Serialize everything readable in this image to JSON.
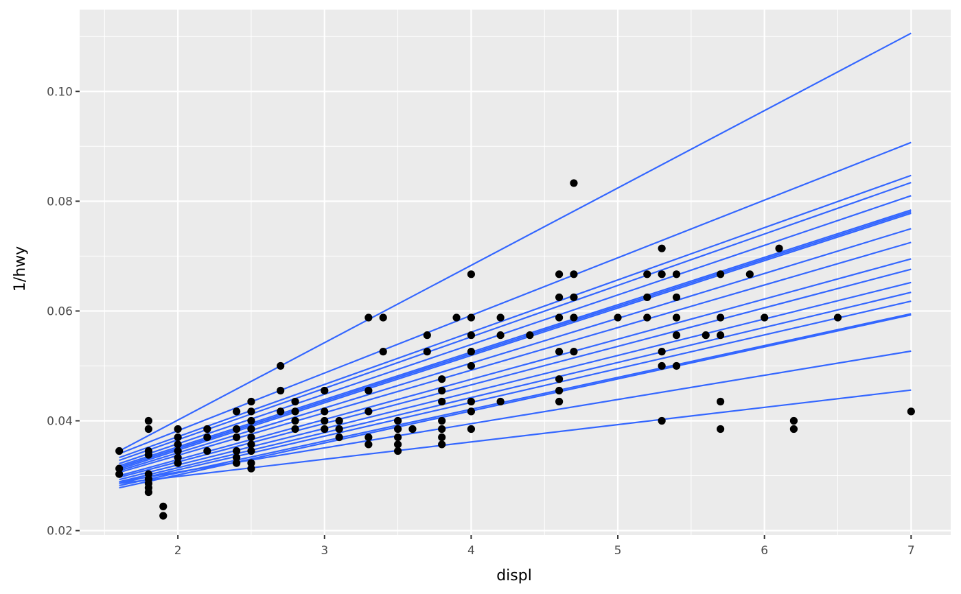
{
  "chart_data": {
    "type": "scatter",
    "xlabel": "displ",
    "ylabel": "1/hwy",
    "xlim": [
      1.33,
      7.27
    ],
    "ylim": [
      0.0192,
      0.1149
    ],
    "x_ticks": [
      2,
      3,
      4,
      5,
      6,
      7
    ],
    "x_tick_labels": [
      "2",
      "3",
      "4",
      "5",
      "6",
      "7"
    ],
    "y_ticks": [
      0.02,
      0.04,
      0.06,
      0.08,
      0.1
    ],
    "y_tick_labels": [
      "0.02",
      "0.04",
      "0.06",
      "0.08",
      "0.10"
    ],
    "grid": true,
    "colors": {
      "panel_background": "#ebebeb",
      "grid": "#ffffff",
      "points": "#000000",
      "lines": "#3366ff"
    },
    "points": [
      [
        1.6,
        0.0345
      ],
      [
        1.6,
        0.0313
      ],
      [
        1.6,
        0.0303
      ],
      [
        1.8,
        0.04
      ],
      [
        1.8,
        0.0385
      ],
      [
        1.8,
        0.0345
      ],
      [
        1.8,
        0.0338
      ],
      [
        1.8,
        0.0303
      ],
      [
        1.8,
        0.0294
      ],
      [
        1.8,
        0.0286
      ],
      [
        1.8,
        0.0278
      ],
      [
        1.8,
        0.027
      ],
      [
        1.9,
        0.0244
      ],
      [
        1.9,
        0.0227
      ],
      [
        2.0,
        0.0385
      ],
      [
        2.0,
        0.037
      ],
      [
        2.0,
        0.0357
      ],
      [
        2.0,
        0.0345
      ],
      [
        2.0,
        0.0333
      ],
      [
        2.0,
        0.0323
      ],
      [
        2.2,
        0.0385
      ],
      [
        2.2,
        0.037
      ],
      [
        2.2,
        0.0345
      ],
      [
        2.4,
        0.0417
      ],
      [
        2.4,
        0.0385
      ],
      [
        2.4,
        0.037
      ],
      [
        2.4,
        0.0345
      ],
      [
        2.4,
        0.0333
      ],
      [
        2.4,
        0.0323
      ],
      [
        2.5,
        0.0435
      ],
      [
        2.5,
        0.0417
      ],
      [
        2.5,
        0.04
      ],
      [
        2.5,
        0.0385
      ],
      [
        2.5,
        0.037
      ],
      [
        2.5,
        0.0357
      ],
      [
        2.5,
        0.0345
      ],
      [
        2.5,
        0.0323
      ],
      [
        2.5,
        0.0313
      ],
      [
        2.7,
        0.05
      ],
      [
        2.7,
        0.0455
      ],
      [
        2.7,
        0.0417
      ],
      [
        2.8,
        0.0435
      ],
      [
        2.8,
        0.0417
      ],
      [
        2.8,
        0.04
      ],
      [
        2.8,
        0.0385
      ],
      [
        3.0,
        0.0455
      ],
      [
        3.0,
        0.0417
      ],
      [
        3.0,
        0.04
      ],
      [
        3.0,
        0.0385
      ],
      [
        3.1,
        0.04
      ],
      [
        3.1,
        0.0385
      ],
      [
        3.1,
        0.037
      ],
      [
        3.3,
        0.0588
      ],
      [
        3.3,
        0.0455
      ],
      [
        3.3,
        0.0417
      ],
      [
        3.3,
        0.037
      ],
      [
        3.3,
        0.0357
      ],
      [
        3.4,
        0.0588
      ],
      [
        3.4,
        0.0526
      ],
      [
        3.5,
        0.04
      ],
      [
        3.5,
        0.0385
      ],
      [
        3.5,
        0.037
      ],
      [
        3.5,
        0.0357
      ],
      [
        3.5,
        0.0345
      ],
      [
        3.6,
        0.0385
      ],
      [
        3.7,
        0.0556
      ],
      [
        3.7,
        0.0526
      ],
      [
        3.8,
        0.0476
      ],
      [
        3.8,
        0.0455
      ],
      [
        3.8,
        0.0435
      ],
      [
        3.8,
        0.04
      ],
      [
        3.8,
        0.0385
      ],
      [
        3.8,
        0.037
      ],
      [
        3.8,
        0.0357
      ],
      [
        3.9,
        0.0588
      ],
      [
        4.0,
        0.0667
      ],
      [
        4.0,
        0.0588
      ],
      [
        4.0,
        0.0556
      ],
      [
        4.0,
        0.0526
      ],
      [
        4.0,
        0.05
      ],
      [
        4.0,
        0.0435
      ],
      [
        4.0,
        0.0417
      ],
      [
        4.0,
        0.0385
      ],
      [
        4.2,
        0.0588
      ],
      [
        4.2,
        0.0556
      ],
      [
        4.2,
        0.0435
      ],
      [
        4.4,
        0.0556
      ],
      [
        4.6,
        0.0667
      ],
      [
        4.6,
        0.0625
      ],
      [
        4.6,
        0.0588
      ],
      [
        4.6,
        0.0526
      ],
      [
        4.6,
        0.0476
      ],
      [
        4.6,
        0.0455
      ],
      [
        4.6,
        0.0435
      ],
      [
        4.7,
        0.0833
      ],
      [
        4.7,
        0.0667
      ],
      [
        4.7,
        0.0625
      ],
      [
        4.7,
        0.0588
      ],
      [
        4.7,
        0.0526
      ],
      [
        5.0,
        0.0588
      ],
      [
        5.2,
        0.0667
      ],
      [
        5.2,
        0.0625
      ],
      [
        5.2,
        0.0588
      ],
      [
        5.3,
        0.0714
      ],
      [
        5.3,
        0.0667
      ],
      [
        5.3,
        0.0526
      ],
      [
        5.3,
        0.05
      ],
      [
        5.3,
        0.04
      ],
      [
        5.4,
        0.0667
      ],
      [
        5.4,
        0.0625
      ],
      [
        5.4,
        0.0588
      ],
      [
        5.4,
        0.0556
      ],
      [
        5.4,
        0.05
      ],
      [
        5.6,
        0.0556
      ],
      [
        5.7,
        0.0667
      ],
      [
        5.7,
        0.0588
      ],
      [
        5.7,
        0.0556
      ],
      [
        5.7,
        0.0435
      ],
      [
        5.7,
        0.0385
      ],
      [
        5.9,
        0.0667
      ],
      [
        6.0,
        0.0588
      ],
      [
        6.1,
        0.0714
      ],
      [
        6.2,
        0.04
      ],
      [
        6.2,
        0.0385
      ],
      [
        6.5,
        0.0588
      ],
      [
        7.0,
        0.0417
      ]
    ],
    "lines": [
      {
        "x": [
          1.6,
          7.0
        ],
        "y": [
          0.0345,
          0.1106
        ]
      },
      {
        "x": [
          1.6,
          7.0
        ],
        "y": [
          0.034,
          0.0907
        ]
      },
      {
        "x": [
          1.6,
          7.0
        ],
        "y": [
          0.0333,
          0.0847
        ]
      },
      {
        "x": [
          1.6,
          7.0
        ],
        "y": [
          0.0328,
          0.0834
        ]
      },
      {
        "x": [
          1.6,
          7.0
        ],
        "y": [
          0.0322,
          0.081
        ]
      },
      {
        "x": [
          1.6,
          7.0
        ],
        "y": [
          0.0318,
          0.0784
        ]
      },
      {
        "x": [
          1.6,
          7.0
        ],
        "y": [
          0.0315,
          0.0781
        ]
      },
      {
        "x": [
          1.6,
          7.0
        ],
        "y": [
          0.0312,
          0.0778
        ]
      },
      {
        "x": [
          1.6,
          7.0
        ],
        "y": [
          0.0309,
          0.075
        ]
      },
      {
        "x": [
          1.6,
          7.0
        ],
        "y": [
          0.0306,
          0.0725
        ]
      },
      {
        "x": [
          1.6,
          7.0
        ],
        "y": [
          0.03,
          0.0695
        ]
      },
      {
        "x": [
          1.6,
          7.0
        ],
        "y": [
          0.0297,
          0.0676
        ]
      },
      {
        "x": [
          1.6,
          7.0
        ],
        "y": [
          0.0293,
          0.0652
        ]
      },
      {
        "x": [
          1.6,
          7.0
        ],
        "y": [
          0.0289,
          0.0634
        ]
      },
      {
        "x": [
          1.6,
          7.0
        ],
        "y": [
          0.0286,
          0.0618
        ]
      },
      {
        "x": [
          1.6,
          7.0
        ],
        "y": [
          0.0282,
          0.0595
        ]
      },
      {
        "x": [
          1.6,
          7.0
        ],
        "y": [
          0.0278,
          0.0593
        ]
      },
      {
        "x": [
          1.6,
          7.0
        ],
        "y": [
          0.0289,
          0.0527
        ]
      },
      {
        "x": [
          1.6,
          7.0
        ],
        "y": [
          0.0286,
          0.0456
        ]
      }
    ]
  }
}
